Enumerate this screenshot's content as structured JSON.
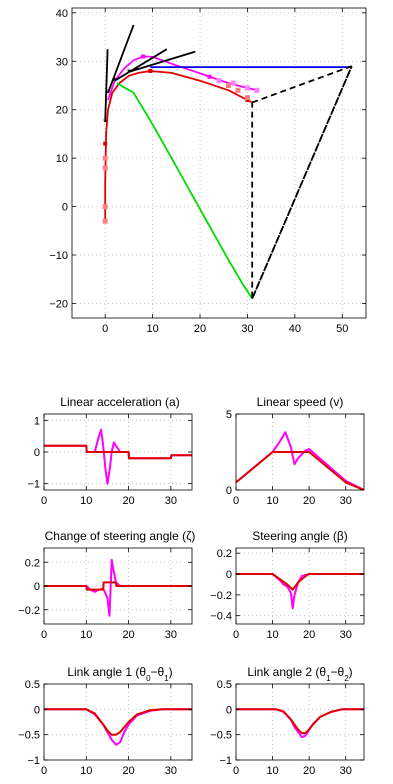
{
  "chart_data": [
    {
      "type": "line",
      "id": "trajectory",
      "title": "",
      "xlim": [
        -7,
        55
      ],
      "ylim": [
        -23,
        41
      ],
      "xticks": [
        0,
        10,
        20,
        30,
        40,
        50
      ],
      "yticks": [
        -20,
        -10,
        0,
        10,
        20,
        30,
        40
      ],
      "grid": true,
      "series": [
        {
          "id": "red_path",
          "color": "#e00000",
          "x": [
            0,
            0,
            0.2,
            0.6,
            1.5,
            3,
            5,
            7,
            9.5,
            14,
            20,
            26,
            31
          ],
          "y": [
            -3,
            5,
            15,
            20,
            23.5,
            25.5,
            27,
            27.6,
            28,
            27.6,
            26,
            24,
            21.5
          ]
        },
        {
          "id": "magenta_path",
          "color": "#ff00ff",
          "x": [
            0.6,
            2,
            4,
            6,
            8,
            10,
            14,
            20,
            26,
            32
          ],
          "y": [
            22,
            26,
            28.5,
            30.2,
            31,
            30.9,
            29.5,
            27.5,
            25.5,
            24
          ]
        },
        {
          "id": "blue_path",
          "color": "#0000ee",
          "x": [
            9.5,
            52
          ],
          "y": [
            28.8,
            28.8
          ]
        },
        {
          "id": "green_path",
          "color": "#00dd00",
          "x": [
            2.5,
            6,
            10,
            14,
            18,
            22,
            26,
            29,
            31
          ],
          "y": [
            25.5,
            23.5,
            17,
            10,
            3,
            -4,
            -11,
            -16,
            -19
          ]
        },
        {
          "id": "black_rays",
          "color": "#000000",
          "x": [
            0,
            0.5,
            null,
            0.6,
            6,
            null,
            2,
            13,
            null,
            5,
            19
          ],
          "y": [
            17.5,
            32.5,
            null,
            23.5,
            37.5,
            null,
            26,
            32.5,
            null,
            27.8,
            32
          ]
        },
        {
          "id": "dashed_links",
          "color": "#000000",
          "dashed": true,
          "x": [
            31,
            52,
            31,
            31,
            31
          ],
          "y": [
            21.5,
            29,
            -19,
            -19,
            21.5
          ]
        },
        {
          "id": "dashed_links_2",
          "color": "#000000",
          "dashed": true,
          "x": [
            31,
            52
          ],
          "y": [
            -19,
            29
          ]
        },
        {
          "id": "black_markers",
          "color": "#000000",
          "x": [
            0,
            0.6,
            2,
            5
          ],
          "y": [
            17.5,
            23.5,
            26,
            27.8
          ]
        },
        {
          "id": "pink_trail",
          "color": "#ff8080",
          "x": [
            0,
            0,
            0,
            0,
            26,
            28,
            30
          ],
          "y": [
            -3,
            0,
            8,
            10,
            25,
            24,
            22.5
          ]
        },
        {
          "id": "violet_trail",
          "color": "#ff80ff",
          "x": [
            24,
            27,
            30,
            32
          ],
          "y": [
            26,
            25.5,
            24.5,
            24
          ]
        }
      ]
    },
    {
      "type": "line",
      "id": "accel",
      "title": "Linear acceleration (a)",
      "xlim": [
        0,
        35
      ],
      "ylim": [
        -1.2,
        1.2
      ],
      "xticks": [
        0,
        10,
        20,
        30
      ],
      "yticks": [
        -1,
        0,
        1
      ],
      "series": [
        {
          "name": "",
          "color": "#ff00ff",
          "x": [
            0,
            10,
            10.1,
            12,
            13,
            13.5,
            14,
            14.5,
            15,
            15.5,
            16,
            16.5,
            17,
            18,
            20,
            20.1,
            30,
            30.1,
            35
          ],
          "y": [
            0.2,
            0.2,
            0,
            0,
            0.5,
            0.7,
            0.2,
            -0.5,
            -1,
            -0.6,
            0,
            0.3,
            0.2,
            0,
            0,
            -0.2,
            -0.2,
            -0.1,
            -0.1
          ]
        },
        {
          "name": "",
          "color": "#e00000",
          "x": [
            0,
            10,
            10.1,
            20,
            20.1,
            30,
            30.1,
            35
          ],
          "y": [
            0.2,
            0.2,
            0,
            0,
            -0.2,
            -0.2,
            -0.1,
            -0.1
          ]
        }
      ]
    },
    {
      "type": "line",
      "id": "speed",
      "title": "Linear speed (v)",
      "xlim": [
        0,
        35
      ],
      "ylim": [
        0,
        5
      ],
      "xticks": [
        0,
        10,
        20,
        30
      ],
      "yticks": [
        0,
        5
      ],
      "series": [
        {
          "name": "",
          "color": "#ff00ff",
          "x": [
            0,
            10,
            12,
            13.5,
            15,
            16,
            17,
            19,
            20,
            30,
            35
          ],
          "y": [
            0.5,
            2.5,
            3.2,
            3.8,
            2.8,
            1.7,
            2.1,
            2.6,
            2.7,
            0.6,
            0
          ]
        },
        {
          "name": "",
          "color": "#e00000",
          "x": [
            0,
            10,
            20,
            30,
            35
          ],
          "y": [
            0.5,
            2.5,
            2.5,
            0.5,
            0
          ]
        }
      ]
    },
    {
      "type": "line",
      "id": "steer_rate",
      "title": "Change of steering angle (ζ)",
      "xlim": [
        0,
        35
      ],
      "ylim": [
        -0.32,
        0.32
      ],
      "xticks": [
        0,
        10,
        20,
        30
      ],
      "yticks": [
        -0.2,
        0,
        0.2
      ],
      "series": [
        {
          "name": "",
          "color": "#ff00ff",
          "x": [
            0,
            10,
            11,
            12,
            13,
            14,
            15,
            15.5,
            16,
            16.5,
            17,
            18,
            20,
            35
          ],
          "y": [
            0,
            0,
            -0.03,
            -0.05,
            -0.03,
            -0.02,
            -0.1,
            -0.25,
            0.22,
            0.12,
            0.03,
            0,
            0,
            0
          ]
        },
        {
          "name": "",
          "color": "#e00000",
          "x": [
            0,
            10,
            10.1,
            14,
            14.1,
            17,
            17.1,
            35
          ],
          "y": [
            0,
            0,
            -0.03,
            -0.03,
            0.03,
            0.03,
            0,
            0
          ]
        }
      ]
    },
    {
      "type": "line",
      "id": "steer",
      "title": "Steering angle (β)",
      "xlim": [
        0,
        35
      ],
      "ylim": [
        -0.48,
        0.25
      ],
      "xticks": [
        0,
        10,
        20,
        30
      ],
      "yticks": [
        -0.4,
        -0.2,
        0,
        0.2
      ],
      "series": [
        {
          "name": "",
          "color": "#ff00ff",
          "x": [
            0,
            10,
            12,
            13,
            14,
            15,
            15.5,
            16,
            17,
            18,
            20,
            35
          ],
          "y": [
            0,
            0,
            -0.06,
            -0.1,
            -0.12,
            -0.18,
            -0.33,
            -0.2,
            -0.08,
            -0.02,
            0,
            0
          ]
        },
        {
          "name": "",
          "color": "#e00000",
          "x": [
            0,
            10,
            12,
            14,
            15.5,
            17,
            19,
            20,
            35
          ],
          "y": [
            0,
            0,
            -0.05,
            -0.1,
            -0.15,
            -0.08,
            -0.02,
            0,
            0
          ]
        }
      ]
    },
    {
      "type": "line",
      "id": "link1",
      "title": "Link angle 1 (θ0−θ1)",
      "title_main": "Link angle 1 (θ",
      "title_s1": "0",
      "title_mid": "−θ",
      "title_s2": "1",
      "title_end": ")",
      "xlim": [
        0,
        35
      ],
      "ylim": [
        -1,
        0.5
      ],
      "xticks": [
        0,
        10,
        20,
        30
      ],
      "yticks": [
        -1,
        -0.5,
        0,
        0.5
      ],
      "series": [
        {
          "name": "",
          "color": "#ff00ff",
          "x": [
            0,
            10,
            12,
            14,
            15,
            16,
            17,
            18,
            19,
            20,
            22,
            25,
            28,
            35
          ],
          "y": [
            0,
            0,
            -0.1,
            -0.3,
            -0.45,
            -0.6,
            -0.7,
            -0.65,
            -0.45,
            -0.3,
            -0.12,
            -0.03,
            0,
            0
          ]
        },
        {
          "name": "",
          "color": "#e00000",
          "x": [
            0,
            10,
            12,
            14,
            15,
            16,
            17,
            18,
            19,
            20,
            22,
            25,
            28,
            35
          ],
          "y": [
            0,
            0,
            -0.08,
            -0.3,
            -0.42,
            -0.5,
            -0.5,
            -0.45,
            -0.35,
            -0.25,
            -0.1,
            -0.02,
            0,
            0
          ]
        }
      ]
    },
    {
      "type": "line",
      "id": "link2",
      "title": "Link angle 2 (θ1−θ2)",
      "title_main": "Link angle 2 (θ",
      "title_s1": "1",
      "title_mid": "−θ",
      "title_s2": "2",
      "title_end": ")",
      "xlim": [
        0,
        35
      ],
      "ylim": [
        -1,
        0.5
      ],
      "xticks": [
        0,
        10,
        20,
        30
      ],
      "yticks": [
        -1,
        -0.5,
        0,
        0.5
      ],
      "series": [
        {
          "name": "",
          "color": "#ff00ff",
          "x": [
            0,
            11,
            13,
            15,
            16,
            17,
            18,
            19,
            20,
            21,
            23,
            26,
            29,
            35
          ],
          "y": [
            0,
            0,
            -0.05,
            -0.2,
            -0.35,
            -0.45,
            -0.55,
            -0.52,
            -0.4,
            -0.3,
            -0.15,
            -0.05,
            0,
            0
          ]
        },
        {
          "name": "",
          "color": "#e00000",
          "x": [
            0,
            11,
            13,
            15,
            16,
            17,
            18,
            19,
            20,
            21,
            23,
            26,
            29,
            35
          ],
          "y": [
            0,
            0,
            -0.04,
            -0.2,
            -0.3,
            -0.4,
            -0.47,
            -0.47,
            -0.4,
            -0.3,
            -0.15,
            -0.05,
            0,
            0
          ]
        }
      ]
    }
  ]
}
